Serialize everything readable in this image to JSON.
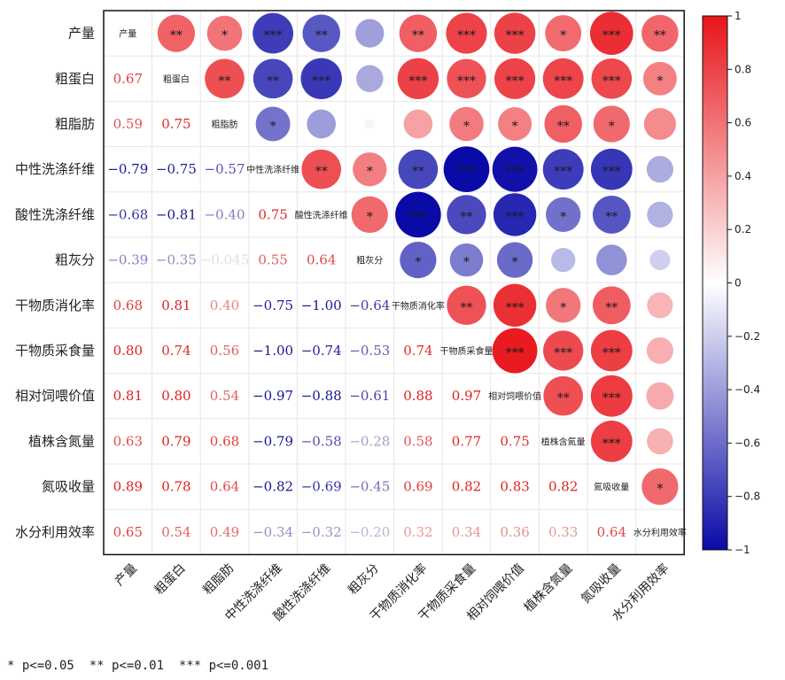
{
  "chart_data": {
    "type": "heatmap",
    "variables": [
      "产量",
      "粗蛋白",
      "粗脂肪",
      "中性洗涤纤维",
      "酸性洗涤纤维",
      "粗灰分",
      "干物质消化率",
      "干物质采食量",
      "相对饲喂价值",
      "植株含氮量",
      "氮吸收量",
      "水分利用效率"
    ],
    "lower_labels": [
      [],
      [
        "0.67"
      ],
      [
        "0.59",
        "0.75"
      ],
      [
        "−0.79",
        "−0.75",
        "−0.57"
      ],
      [
        "−0.68",
        "−0.81",
        "−0.40",
        "0.75"
      ],
      [
        "−0.39",
        "−0.35",
        "−0.045",
        "0.55",
        "0.64"
      ],
      [
        "0.68",
        "0.81",
        "0.40",
        "−0.75",
        "−1.00",
        "−0.64"
      ],
      [
        "0.80",
        "0.74",
        "0.56",
        "−1.00",
        "−0.74",
        "−0.53",
        "0.74"
      ],
      [
        "0.81",
        "0.80",
        "0.54",
        "−0.97",
        "−0.88",
        "−0.61",
        "0.88",
        "0.97"
      ],
      [
        "0.63",
        "0.79",
        "0.68",
        "−0.79",
        "−0.58",
        "−0.28",
        "0.58",
        "0.77",
        "0.75"
      ],
      [
        "0.89",
        "0.78",
        "0.64",
        "−0.82",
        "−0.69",
        "−0.45",
        "0.69",
        "0.82",
        "0.83",
        "0.82"
      ],
      [
        "0.65",
        "0.54",
        "0.49",
        "−0.34",
        "−0.32",
        "−0.20",
        "0.32",
        "0.34",
        "0.36",
        "0.33",
        "0.64"
      ]
    ],
    "matrix": [
      [
        1,
        0.67,
        0.59,
        -0.79,
        -0.68,
        -0.39,
        0.68,
        0.8,
        0.81,
        0.63,
        0.89,
        0.65
      ],
      [
        0.67,
        1,
        0.75,
        -0.75,
        -0.81,
        -0.35,
        0.81,
        0.74,
        0.8,
        0.79,
        0.78,
        0.54
      ],
      [
        0.59,
        0.75,
        1,
        -0.57,
        -0.4,
        -0.045,
        0.4,
        0.56,
        0.54,
        0.68,
        0.64,
        0.49
      ],
      [
        -0.79,
        -0.75,
        -0.57,
        1,
        0.75,
        0.55,
        -0.75,
        -1.0,
        -0.97,
        -0.79,
        -0.82,
        -0.34
      ],
      [
        -0.68,
        -0.81,
        -0.4,
        0.75,
        1,
        0.64,
        -1.0,
        -0.74,
        -0.88,
        -0.58,
        -0.69,
        -0.32
      ],
      [
        -0.39,
        -0.35,
        -0.045,
        0.55,
        0.64,
        1,
        -0.64,
        -0.53,
        -0.61,
        -0.28,
        -0.45,
        -0.2
      ],
      [
        0.68,
        0.81,
        0.4,
        -0.75,
        -1.0,
        -0.64,
        1,
        0.74,
        0.88,
        0.58,
        0.69,
        0.32
      ],
      [
        0.8,
        0.74,
        0.56,
        -1.0,
        -0.74,
        -0.53,
        0.74,
        1,
        0.97,
        0.77,
        0.82,
        0.34
      ],
      [
        0.81,
        0.8,
        0.54,
        -0.97,
        -0.88,
        -0.61,
        0.88,
        0.97,
        1,
        0.75,
        0.83,
        0.36
      ],
      [
        0.63,
        0.79,
        0.68,
        -0.79,
        -0.58,
        -0.28,
        0.58,
        0.77,
        0.75,
        1,
        0.82,
        0.33
      ],
      [
        0.89,
        0.78,
        0.64,
        -0.82,
        -0.69,
        -0.45,
        0.69,
        0.82,
        0.83,
        0.82,
        1,
        0.64
      ],
      [
        0.65,
        0.54,
        0.49,
        -0.34,
        -0.32,
        -0.2,
        0.32,
        0.34,
        0.36,
        0.33,
        0.64,
        1
      ]
    ],
    "significance_upper": [
      [
        null,
        "**",
        "*",
        "***",
        "**",
        "",
        "**",
        "***",
        "***",
        "*",
        "***",
        "**"
      ],
      [
        null,
        null,
        "**",
        "**",
        "***",
        "",
        "***",
        "***",
        "***",
        "***",
        "***",
        "*"
      ],
      [
        null,
        null,
        null,
        "*",
        "",
        "",
        "",
        "*",
        "*",
        "**",
        "*",
        ""
      ],
      [
        null,
        null,
        null,
        null,
        "**",
        "*",
        "**",
        "***",
        "***",
        "***",
        "***",
        ""
      ],
      [
        null,
        null,
        null,
        null,
        null,
        "*",
        "***",
        "**",
        "***",
        "*",
        "**",
        ""
      ],
      [
        null,
        null,
        null,
        null,
        null,
        null,
        "*",
        "*",
        "*",
        "",
        "",
        ""
      ],
      [
        null,
        null,
        null,
        null,
        null,
        null,
        null,
        "**",
        "***",
        "*",
        "**",
        ""
      ],
      [
        null,
        null,
        null,
        null,
        null,
        null,
        null,
        null,
        "***",
        "***",
        "***",
        ""
      ],
      [
        null,
        null,
        null,
        null,
        null,
        null,
        null,
        null,
        null,
        "**",
        "***",
        ""
      ],
      [
        null,
        null,
        null,
        null,
        null,
        null,
        null,
        null,
        null,
        null,
        "***",
        ""
      ],
      [
        null,
        null,
        null,
        null,
        null,
        null,
        null,
        null,
        null,
        null,
        null,
        "*"
      ],
      [
        null,
        null,
        null,
        null,
        null,
        null,
        null,
        null,
        null,
        null,
        null,
        null
      ]
    ],
    "colorbar": {
      "range": [
        -1,
        1
      ],
      "ticks": [
        "1",
        "0.8",
        "0.6",
        "0.4",
        "0.2",
        "0",
        "−0.2",
        "−0.4",
        "−0.6",
        "−0.8",
        "−1"
      ],
      "low_color": "#0a0aa6",
      "mid_color": "#ffffff",
      "high_color": "#e8141a"
    },
    "legend_text": "* p<=0.05  ** p<=0.01  *** p<=0.001"
  }
}
